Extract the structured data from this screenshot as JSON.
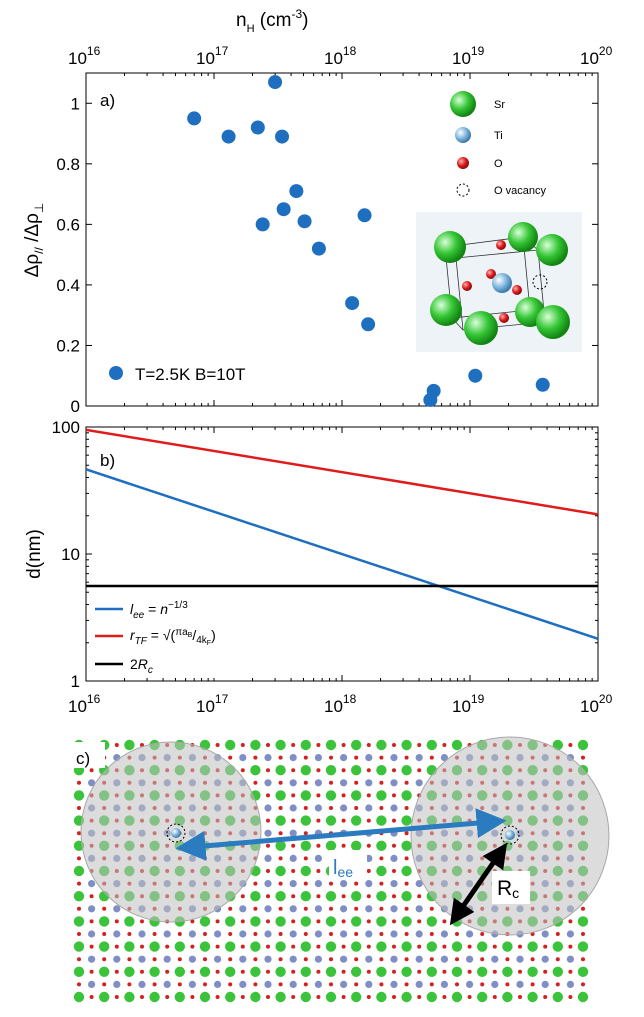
{
  "chart_data": [
    {
      "panel": "a)",
      "type": "scatter",
      "xlabel": "n",
      "xlabel_sub": "H",
      "xlabel_unit_open": " (cm",
      "xlabel_unit_exp": "-3",
      "xlabel_unit_close": ")",
      "ylabel": "Δρ// /Δρ⊥",
      "xscale": "log",
      "xlim": [
        1e+16,
        1e+20
      ],
      "ylim": [
        0,
        1.1
      ],
      "x_ticks": [
        {
          "exp": 16,
          "label": "16"
        },
        {
          "exp": 17,
          "label": "17"
        },
        {
          "exp": 18,
          "label": "18"
        },
        {
          "exp": 19,
          "label": "19"
        },
        {
          "exp": 20,
          "label": "20"
        }
      ],
      "y_ticks": [
        {
          "value": 0,
          "label": "0"
        },
        {
          "value": 0.2,
          "label": "0.2"
        },
        {
          "value": 0.4,
          "label": "0.4"
        },
        {
          "value": 0.6,
          "label": "0.6"
        },
        {
          "value": 0.8,
          "label": "0.8"
        },
        {
          "value": 1,
          "label": "1"
        }
      ],
      "series": [
        {
          "name": "T=2.5K B=10T",
          "color": "#1f6fc1",
          "points": [
            {
              "x": 7e+16,
              "y": 0.95
            },
            {
              "x": 1.3e+17,
              "y": 0.89
            },
            {
              "x": 2.2e+17,
              "y": 0.92
            },
            {
              "x": 2.4e+17,
              "y": 0.6
            },
            {
              "x": 3e+17,
              "y": 1.07
            },
            {
              "x": 3.4e+17,
              "y": 0.89
            },
            {
              "x": 3.5e+17,
              "y": 0.65
            },
            {
              "x": 4.4e+17,
              "y": 0.71
            },
            {
              "x": 5.1e+17,
              "y": 0.61
            },
            {
              "x": 6.6e+17,
              "y": 0.52
            },
            {
              "x": 1.2e+18,
              "y": 0.34
            },
            {
              "x": 1.5e+18,
              "y": 0.63
            },
            {
              "x": 1.6e+18,
              "y": 0.27
            },
            {
              "x": 4.9e+18,
              "y": 0.02
            },
            {
              "x": 5.2e+18,
              "y": 0.05
            },
            {
              "x": 1.1e+19,
              "y": 0.1
            },
            {
              "x": 3.7e+19,
              "y": 0.07
            }
          ]
        }
      ],
      "legend_position": "bottom-left",
      "inset_legend": [
        {
          "label": "Sr",
          "color": "#22c322"
        },
        {
          "label": "Ti",
          "color": "#7ab3dc"
        },
        {
          "label": "O",
          "color": "#d91a1a"
        },
        {
          "label": "O vacancy",
          "color": "#000000"
        }
      ]
    },
    {
      "panel": "b)",
      "type": "line",
      "xscale": "log",
      "yscale": "log",
      "xlim": [
        1e+16,
        1e+20
      ],
      "ylim": [
        1,
        100
      ],
      "ylabel": "d(nm)",
      "x_ticks": [
        {
          "exp": 16,
          "label": "16"
        },
        {
          "exp": 17,
          "label": "17"
        },
        {
          "exp": 18,
          "label": "18"
        },
        {
          "exp": 19,
          "label": "19"
        },
        {
          "exp": 20,
          "label": "20"
        }
      ],
      "y_ticks": [
        {
          "value": 1,
          "label": "1"
        },
        {
          "value": 10,
          "label": "10"
        },
        {
          "value": 100,
          "label": "100"
        }
      ],
      "series": [
        {
          "name": "l_ee = n^-1/3",
          "color": "#1f6fc1",
          "points": [
            {
              "x": 1e+16,
              "y": 46.4
            },
            {
              "x": 1e+20,
              "y": 2.15
            }
          ]
        },
        {
          "name": "r_TF = √(πa_B/4k_F)",
          "color": "#e01b1b",
          "points": [
            {
              "x": 1e+16,
              "y": 95
            },
            {
              "x": 1e+20,
              "y": 20.5
            }
          ]
        },
        {
          "name": "2R_c",
          "color": "#000000",
          "points": [
            {
              "x": 1e+16,
              "y": 5.6
            },
            {
              "x": 1e+20,
              "y": 5.6
            }
          ]
        }
      ],
      "legend_position": "bottom-left"
    }
  ],
  "panel_c": {
    "label": "c)",
    "colors": {
      "sr": "#3cc33c",
      "ti": "#7f8fc6",
      "o": "#d32020",
      "arrow_blue": "#2a7bbf",
      "arrow_black": "#000000"
    },
    "lee_main": "l",
    "lee_sub": "ee",
    "rc_main": "R",
    "rc_sub": "c"
  },
  "base_label": "10"
}
